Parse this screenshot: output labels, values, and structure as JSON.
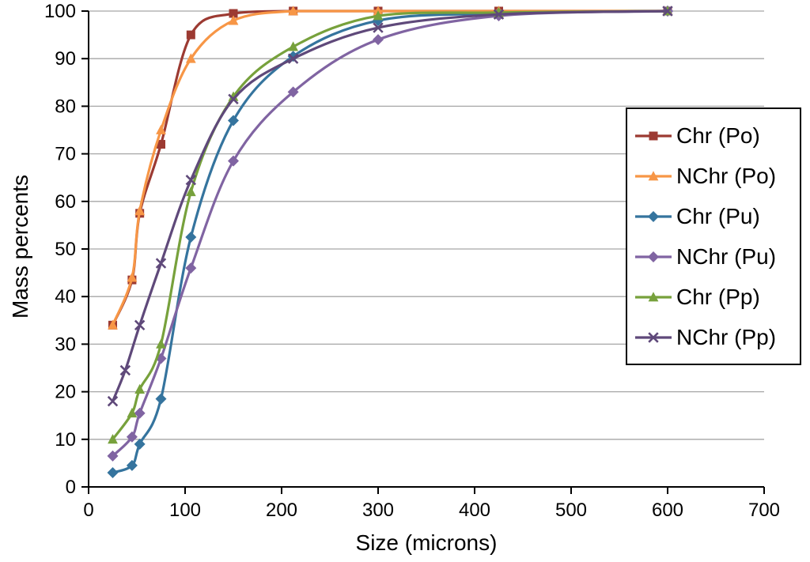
{
  "chart_data": {
    "type": "line",
    "title": "",
    "xlabel": "Size (microns)",
    "ylabel": "Mass percents",
    "xlim": [
      0,
      700
    ],
    "ylim": [
      0,
      100
    ],
    "xticks": [
      0,
      100,
      200,
      300,
      400,
      500,
      600,
      700
    ],
    "yticks": [
      0,
      10,
      20,
      30,
      40,
      50,
      60,
      70,
      80,
      90,
      100
    ],
    "grid": "horizontal",
    "gridline_color": "#A6A6A6",
    "axis_color": "#000000",
    "legend_position": "right-inside",
    "series": [
      {
        "name": "Chr (Po)",
        "color": "#9C3A32",
        "marker": "square",
        "points": [
          [
            25,
            34
          ],
          [
            45,
            43.5
          ],
          [
            53,
            57.5
          ],
          [
            75,
            72
          ],
          [
            106,
            95
          ],
          [
            150,
            99.5
          ],
          [
            212,
            100
          ],
          [
            300,
            100
          ],
          [
            425,
            100
          ],
          [
            600,
            100
          ]
        ]
      },
      {
        "name": "NChr (Po)",
        "color": "#F79646",
        "marker": "triangle",
        "points": [
          [
            25,
            34
          ],
          [
            45,
            44
          ],
          [
            53,
            58
          ],
          [
            75,
            75
          ],
          [
            106,
            90
          ],
          [
            150,
            98
          ],
          [
            212,
            100
          ],
          [
            300,
            100
          ],
          [
            425,
            100
          ],
          [
            600,
            100
          ]
        ]
      },
      {
        "name": "Chr (Pu)",
        "color": "#35749E",
        "marker": "diamond",
        "points": [
          [
            25,
            3
          ],
          [
            45,
            4.5
          ],
          [
            53,
            9
          ],
          [
            75,
            18.5
          ],
          [
            106,
            52.5
          ],
          [
            150,
            77
          ],
          [
            212,
            90.5
          ],
          [
            300,
            98
          ],
          [
            425,
            99.5
          ],
          [
            600,
            100
          ]
        ]
      },
      {
        "name": "NChr (Pu)",
        "color": "#8064A2",
        "marker": "diamond",
        "points": [
          [
            25,
            6.5
          ],
          [
            45,
            10.5
          ],
          [
            53,
            15.5
          ],
          [
            75,
            27
          ],
          [
            106,
            46
          ],
          [
            150,
            68.5
          ],
          [
            212,
            83
          ],
          [
            300,
            94
          ],
          [
            425,
            99
          ],
          [
            600,
            100
          ]
        ]
      },
      {
        "name": "Chr (Pp)",
        "color": "#77A13C",
        "marker": "triangle",
        "points": [
          [
            25,
            10
          ],
          [
            45,
            15.5
          ],
          [
            53,
            20.5
          ],
          [
            75,
            30
          ],
          [
            106,
            62
          ],
          [
            150,
            82
          ],
          [
            212,
            92.5
          ],
          [
            300,
            99
          ],
          [
            425,
            99.7
          ],
          [
            600,
            100
          ]
        ]
      },
      {
        "name": "NChr (Pp)",
        "color": "#5F497A",
        "marker": "x",
        "points": [
          [
            25,
            18
          ],
          [
            38,
            24.5
          ],
          [
            53,
            34
          ],
          [
            75,
            47
          ],
          [
            106,
            64.5
          ],
          [
            150,
            81.5
          ],
          [
            212,
            90
          ],
          [
            300,
            96.5
          ],
          [
            425,
            99.3
          ],
          [
            600,
            100
          ]
        ]
      }
    ]
  }
}
